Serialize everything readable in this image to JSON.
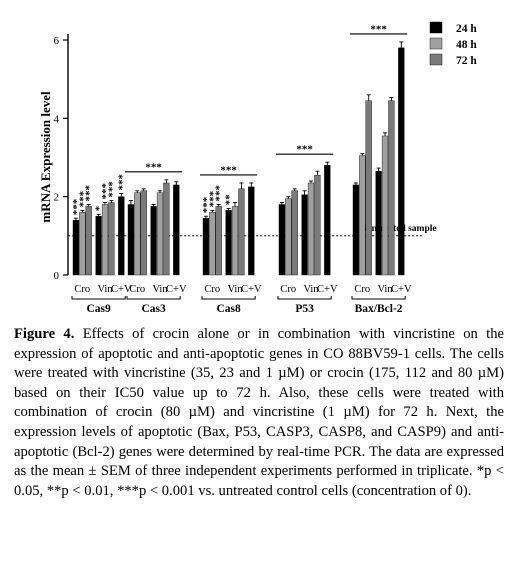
{
  "chart_data": {
    "type": "bar",
    "ylabel": "mRNA Expression level",
    "ylim": [
      0,
      6
    ],
    "yticks": [
      0,
      2,
      4,
      6
    ],
    "reference_line": {
      "value": 1,
      "label": "Nontreated sample"
    },
    "series": [
      {
        "name": "24 h",
        "color": "#000000"
      },
      {
        "name": "48 h",
        "color": "#a0a0a0"
      },
      {
        "name": "72 h",
        "color": "#7a7a7a"
      }
    ],
    "groups": [
      {
        "label": "Cas9",
        "sublabels": [
          "Cro",
          "Vin",
          "C+V"
        ],
        "subgroups": [
          {
            "values": [
              1.4,
              1.6,
              1.75
            ],
            "errors": [
              0.05,
              0.05,
              0.05
            ],
            "stars": [
              "***",
              "***",
              "***"
            ]
          },
          {
            "values": [
              1.5,
              1.8,
              1.85
            ],
            "errors": [
              0.05,
              0.05,
              0.05
            ],
            "stars": [
              "*",
              "***",
              "***"
            ]
          },
          {
            "values": [
              2.0
            ],
            "errors": [
              0.08
            ],
            "stars": [
              "***"
            ]
          }
        ]
      },
      {
        "label": "Cas3",
        "sublabels": [
          "Cro",
          "Vin",
          "C+V"
        ],
        "bracket": "***",
        "subgroups": [
          {
            "values": [
              1.8,
              2.1,
              2.15
            ],
            "errors": [
              0.1,
              0.05,
              0.05
            ]
          },
          {
            "values": [
              1.75,
              2.1,
              2.35
            ],
            "errors": [
              0.05,
              0.05,
              0.08
            ]
          },
          {
            "values": [
              2.3
            ],
            "errors": [
              0.08
            ]
          }
        ]
      },
      {
        "label": "Cas8",
        "sublabels": [
          "Cro",
          "Vin",
          "C+V"
        ],
        "bracket": "***",
        "subgroups": [
          {
            "values": [
              1.45,
              1.6,
              1.75
            ],
            "errors": [
              0.05,
              0.05,
              0.05
            ],
            "stars": [
              "***",
              "***",
              "***"
            ]
          },
          {
            "values": [
              1.65,
              1.75,
              2.2
            ],
            "errors": [
              0.05,
              0.1,
              0.15
            ],
            "stars": [
              "**",
              "",
              ""
            ]
          },
          {
            "values": [
              2.25
            ],
            "errors": [
              0.1
            ]
          }
        ]
      },
      {
        "label": "P53",
        "sublabels": [
          "Cro",
          "Vin",
          "C+V"
        ],
        "bracket": "***",
        "subgroups": [
          {
            "values": [
              1.8,
              1.95,
              2.15
            ],
            "errors": [
              0.05,
              0.05,
              0.05
            ]
          },
          {
            "values": [
              2.05,
              2.35,
              2.55
            ],
            "errors": [
              0.1,
              0.05,
              0.1
            ]
          },
          {
            "values": [
              2.8
            ],
            "errors": [
              0.08
            ]
          }
        ]
      },
      {
        "label": "Bax/Bcl-2",
        "sublabels": [
          "Cro",
          "Vin",
          "C+V"
        ],
        "bracket": "***",
        "subgroups": [
          {
            "values": [
              2.3,
              3.05,
              4.45
            ],
            "errors": [
              0.05,
              0.05,
              0.15
            ]
          },
          {
            "values": [
              2.65,
              3.55,
              4.45
            ],
            "errors": [
              0.08,
              0.08,
              0.08
            ]
          },
          {
            "values": [
              5.8
            ],
            "errors": [
              0.15
            ]
          }
        ]
      }
    ]
  },
  "caption": {
    "label": "Figure 4.",
    "text": " Effects of crocin alone or in combination with vincristine on the expression of apoptotic and anti-apoptotic genes in CO 88BV59-1 cells. The cells were treated with vincristine (35, 23 and 1 µM) or crocin (175, 112 and 80 µM) based on their IC50 value up to 72 h. Also, these cells were treated with combination of crocin (80 µM) and vincristine (1 µM) for 72 h. Next, the expression levels of apoptotic (Bax, P53, CASP3, CASP8, and CASP9) and anti-apoptotic (Bcl-2) genes were determined by real-time PCR. The data are expressed as the mean ± SEM of three independent experiments performed in triplicate. *p < 0.05, **p < 0.01, ***p < 0.001 vs. untreated control cells (concentration of 0)."
  }
}
